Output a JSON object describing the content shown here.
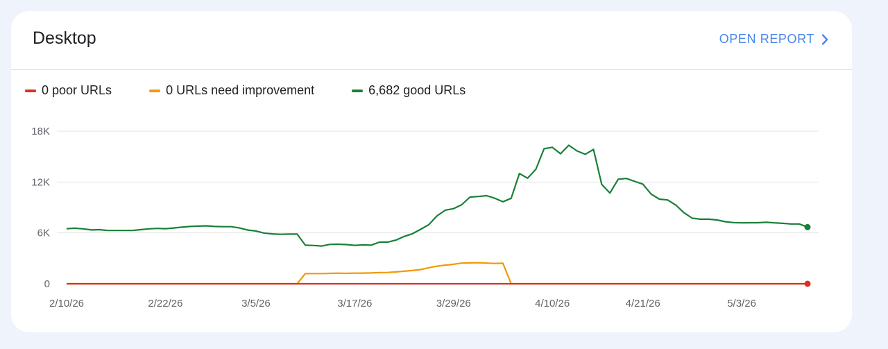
{
  "card": {
    "title": "Desktop",
    "open_report_label": "OPEN REPORT"
  },
  "legend": [
    {
      "label": "0 poor URLs",
      "color": "#d93025"
    },
    {
      "label": "0 URLs need improvement",
      "color": "#f29900"
    },
    {
      "label": "6,682 good URLs",
      "color": "#188038"
    }
  ],
  "chart_data": {
    "type": "line",
    "y_ticks": [
      {
        "value": 0,
        "label": "0"
      },
      {
        "value": 6000,
        "label": "6K"
      },
      {
        "value": 12000,
        "label": "12K"
      },
      {
        "value": 18000,
        "label": "18K"
      }
    ],
    "ylim": [
      0,
      18000
    ],
    "x_range": [
      "2026-02-10",
      "2026-05-11"
    ],
    "x_ticks": [
      {
        "date": "2026-02-10",
        "label": "2/10/26"
      },
      {
        "date": "2026-02-22",
        "label": "2/22/26"
      },
      {
        "date": "2026-03-05",
        "label": "3/5/26"
      },
      {
        "date": "2026-03-17",
        "label": "3/17/26"
      },
      {
        "date": "2026-03-29",
        "label": "3/29/26"
      },
      {
        "date": "2026-04-10",
        "label": "4/10/26"
      },
      {
        "date": "2026-04-21",
        "label": "4/21/26"
      },
      {
        "date": "2026-05-03",
        "label": "5/3/26"
      }
    ],
    "grid": true,
    "series": [
      {
        "color": "#188038",
        "points": [
          [
            "2026-02-10",
            6500
          ],
          [
            "2026-02-11",
            6550
          ],
          [
            "2026-02-12",
            6480
          ],
          [
            "2026-02-13",
            6350
          ],
          [
            "2026-02-14",
            6380
          ],
          [
            "2026-02-15",
            6280
          ],
          [
            "2026-02-16",
            6280
          ],
          [
            "2026-02-17",
            6280
          ],
          [
            "2026-02-18",
            6280
          ],
          [
            "2026-02-19",
            6380
          ],
          [
            "2026-02-20",
            6480
          ],
          [
            "2026-02-21",
            6530
          ],
          [
            "2026-02-22",
            6500
          ],
          [
            "2026-02-23",
            6580
          ],
          [
            "2026-02-24",
            6680
          ],
          [
            "2026-02-25",
            6760
          ],
          [
            "2026-02-26",
            6800
          ],
          [
            "2026-02-27",
            6830
          ],
          [
            "2026-02-28",
            6760
          ],
          [
            "2026-03-01",
            6730
          ],
          [
            "2026-03-02",
            6730
          ],
          [
            "2026-03-03",
            6580
          ],
          [
            "2026-03-04",
            6330
          ],
          [
            "2026-03-05",
            6230
          ],
          [
            "2026-03-06",
            5980
          ],
          [
            "2026-03-07",
            5880
          ],
          [
            "2026-03-08",
            5830
          ],
          [
            "2026-03-09",
            5860
          ],
          [
            "2026-03-10",
            5860
          ],
          [
            "2026-03-11",
            4550
          ],
          [
            "2026-03-12",
            4520
          ],
          [
            "2026-03-13",
            4450
          ],
          [
            "2026-03-14",
            4650
          ],
          [
            "2026-03-15",
            4660
          ],
          [
            "2026-03-16",
            4620
          ],
          [
            "2026-03-17",
            4530
          ],
          [
            "2026-03-18",
            4580
          ],
          [
            "2026-03-19",
            4560
          ],
          [
            "2026-03-20",
            4910
          ],
          [
            "2026-03-21",
            4920
          ],
          [
            "2026-03-22",
            5150
          ],
          [
            "2026-03-23",
            5580
          ],
          [
            "2026-03-24",
            5900
          ],
          [
            "2026-03-25",
            6420
          ],
          [
            "2026-03-26",
            6970
          ],
          [
            "2026-03-27",
            8010
          ],
          [
            "2026-03-28",
            8680
          ],
          [
            "2026-03-29",
            8860
          ],
          [
            "2026-03-30",
            9330
          ],
          [
            "2026-03-31",
            10230
          ],
          [
            "2026-04-01",
            10290
          ],
          [
            "2026-04-02",
            10390
          ],
          [
            "2026-04-03",
            10090
          ],
          [
            "2026-04-04",
            9670
          ],
          [
            "2026-04-05",
            10080
          ],
          [
            "2026-04-06",
            13000
          ],
          [
            "2026-04-07",
            12450
          ],
          [
            "2026-04-08",
            13500
          ],
          [
            "2026-04-09",
            15930
          ],
          [
            "2026-04-10",
            16090
          ],
          [
            "2026-04-11",
            15330
          ],
          [
            "2026-04-12",
            16330
          ],
          [
            "2026-04-13",
            15670
          ],
          [
            "2026-04-14",
            15270
          ],
          [
            "2026-04-15",
            15850
          ],
          [
            "2026-04-16",
            11730
          ],
          [
            "2026-04-17",
            10700
          ],
          [
            "2026-04-18",
            12330
          ],
          [
            "2026-04-19",
            12420
          ],
          [
            "2026-04-20",
            12080
          ],
          [
            "2026-04-21",
            11750
          ],
          [
            "2026-04-22",
            10580
          ],
          [
            "2026-04-23",
            9980
          ],
          [
            "2026-04-24",
            9880
          ],
          [
            "2026-04-25",
            9280
          ],
          [
            "2026-04-26",
            8370
          ],
          [
            "2026-04-27",
            7730
          ],
          [
            "2026-04-28",
            7620
          ],
          [
            "2026-04-29",
            7620
          ],
          [
            "2026-04-30",
            7530
          ],
          [
            "2026-05-01",
            7320
          ],
          [
            "2026-05-02",
            7220
          ],
          [
            "2026-05-03",
            7180
          ],
          [
            "2026-05-04",
            7200
          ],
          [
            "2026-05-05",
            7200
          ],
          [
            "2026-05-06",
            7250
          ],
          [
            "2026-05-07",
            7180
          ],
          [
            "2026-05-08",
            7130
          ],
          [
            "2026-05-09",
            7050
          ],
          [
            "2026-05-10",
            7050
          ],
          [
            "2026-05-11",
            6682
          ]
        ]
      },
      {
        "color": "#f29900",
        "points": [
          [
            "2026-02-10",
            0
          ],
          [
            "2026-03-10",
            0
          ],
          [
            "2026-03-11",
            1200
          ],
          [
            "2026-03-12",
            1200
          ],
          [
            "2026-03-13",
            1200
          ],
          [
            "2026-03-14",
            1230
          ],
          [
            "2026-03-15",
            1250
          ],
          [
            "2026-03-16",
            1230
          ],
          [
            "2026-03-17",
            1250
          ],
          [
            "2026-03-18",
            1260
          ],
          [
            "2026-03-19",
            1280
          ],
          [
            "2026-03-20",
            1320
          ],
          [
            "2026-03-21",
            1330
          ],
          [
            "2026-03-22",
            1400
          ],
          [
            "2026-03-23",
            1480
          ],
          [
            "2026-03-24",
            1560
          ],
          [
            "2026-03-25",
            1680
          ],
          [
            "2026-03-26",
            1900
          ],
          [
            "2026-03-27",
            2080
          ],
          [
            "2026-03-28",
            2200
          ],
          [
            "2026-03-29",
            2300
          ],
          [
            "2026-03-30",
            2440
          ],
          [
            "2026-03-31",
            2460
          ],
          [
            "2026-04-01",
            2480
          ],
          [
            "2026-04-02",
            2440
          ],
          [
            "2026-04-03",
            2400
          ],
          [
            "2026-04-04",
            2420
          ],
          [
            "2026-04-05",
            0
          ],
          [
            "2026-05-11",
            0
          ]
        ]
      },
      {
        "color": "#d93025",
        "points": [
          [
            "2026-02-10",
            0
          ],
          [
            "2026-05-11",
            0
          ]
        ]
      }
    ]
  }
}
